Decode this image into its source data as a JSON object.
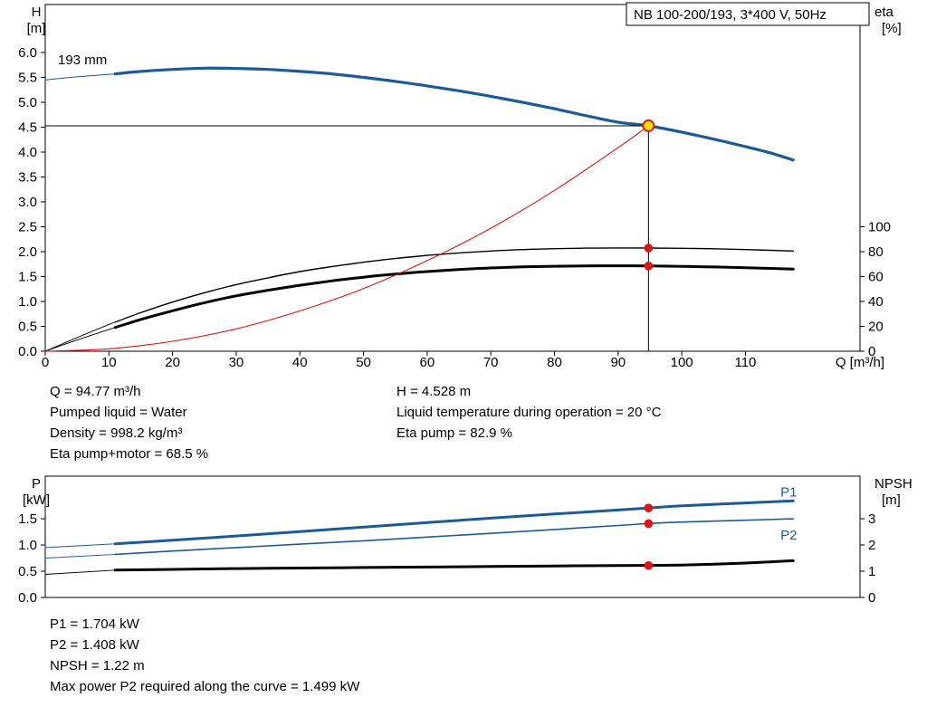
{
  "colors": {
    "pump_blue": "#1b5b97",
    "black": "#000000",
    "red": "#dc1414",
    "marker_yellow": "#ffdf00"
  },
  "top_info": {
    "left": [
      "Q = 94.77 m³/h",
      "Pumped liquid = Water",
      "Density = 998.2 kg/m³",
      "Eta pump+motor = 68.5 %"
    ],
    "right": [
      "H = 4.528 m",
      "Liquid temperature during operation = 20 °C",
      "Eta pump = 82.9 %"
    ]
  },
  "bottom_info": [
    "P1 = 1.704 kW",
    "P2 = 1.408 kW",
    "NPSH = 1.22 m",
    "Max power P2 required along the curve = 1.499 kW"
  ],
  "chart_data": [
    {
      "type": "line",
      "title": "NB 100-200/193, 3*400 V, 50Hz",
      "impeller_label": "193 mm",
      "x_axis": {
        "label": "Q [m³/h]",
        "min": 0,
        "max": 128,
        "decimals": 0,
        "ticks": [
          0,
          10,
          20,
          30,
          40,
          50,
          60,
          70,
          80,
          90,
          100,
          110
        ]
      },
      "y_axis_left": {
        "label": "H",
        "unit": "[m]",
        "min": 0,
        "max": 6.96,
        "decimals": 1,
        "ticks": [
          0,
          0.5,
          1,
          1.5,
          2,
          2.5,
          3,
          3.5,
          4,
          4.5,
          5,
          5.5,
          6
        ]
      },
      "y_axis_right": {
        "label": "eta",
        "unit": "[%]",
        "min": 0,
        "max": 100,
        "decimals": 0,
        "ticks": [
          0,
          20,
          40,
          60,
          80,
          100
        ]
      },
      "series": [
        {
          "name": "pump-curve",
          "axis": "left",
          "color": "pump_blue",
          "thin": 1,
          "thick": 3.2,
          "split_q": 11,
          "points": [
            [
              0,
              5.45
            ],
            [
              5,
              5.51
            ],
            [
              11,
              5.57
            ],
            [
              15,
              5.62
            ],
            [
              20,
              5.66
            ],
            [
              25,
              5.685
            ],
            [
              30,
              5.68
            ],
            [
              35,
              5.66
            ],
            [
              40,
              5.62
            ],
            [
              45,
              5.57
            ],
            [
              50,
              5.5
            ],
            [
              55,
              5.42
            ],
            [
              60,
              5.33
            ],
            [
              65,
              5.23
            ],
            [
              70,
              5.12
            ],
            [
              75,
              5.0
            ],
            [
              80,
              4.87
            ],
            [
              85,
              4.73
            ],
            [
              90,
              4.6
            ],
            [
              94.77,
              4.528
            ],
            [
              100,
              4.4
            ],
            [
              105,
              4.26
            ],
            [
              110,
              4.11
            ],
            [
              114,
              3.98
            ],
            [
              117.5,
              3.84
            ]
          ]
        },
        {
          "name": "eta-pump-curve",
          "axis": "right",
          "color": "black",
          "thin": 0.9,
          "thick": 1.4,
          "split_q": 11,
          "points": [
            [
              0,
              0
            ],
            [
              5,
              11
            ],
            [
              10,
              21.5
            ],
            [
              15,
              31
            ],
            [
              20,
              39.5
            ],
            [
              25,
              47
            ],
            [
              30,
              53.5
            ],
            [
              35,
              59
            ],
            [
              40,
              64
            ],
            [
              45,
              68
            ],
            [
              50,
              71.5
            ],
            [
              55,
              74.5
            ],
            [
              60,
              77
            ],
            [
              65,
              79
            ],
            [
              70,
              80.5
            ],
            [
              75,
              81.7
            ],
            [
              80,
              82.4
            ],
            [
              85,
              82.8
            ],
            [
              90,
              82.95
            ],
            [
              94.77,
              82.9
            ],
            [
              100,
              82.7
            ],
            [
              105,
              82.3
            ],
            [
              110,
              81.7
            ],
            [
              117.5,
              80.5
            ]
          ]
        },
        {
          "name": "eta-pump-motor-curve",
          "axis": "right",
          "color": "black",
          "thin": 0.9,
          "thick": 3,
          "split_q": 11,
          "points": [
            [
              0,
              0
            ],
            [
              5,
              9
            ],
            [
              10,
              17.5
            ],
            [
              15,
              25.5
            ],
            [
              20,
              32.5
            ],
            [
              25,
              39
            ],
            [
              30,
              44.5
            ],
            [
              35,
              49
            ],
            [
              40,
              53
            ],
            [
              45,
              56.5
            ],
            [
              50,
              59.5
            ],
            [
              55,
              62
            ],
            [
              60,
              64
            ],
            [
              65,
              65.7
            ],
            [
              70,
              66.9
            ],
            [
              75,
              67.8
            ],
            [
              80,
              68.3
            ],
            [
              85,
              68.6
            ],
            [
              90,
              68.65
            ],
            [
              94.77,
              68.5
            ],
            [
              100,
              68.2
            ],
            [
              105,
              67.7
            ],
            [
              110,
              67.1
            ],
            [
              117.5,
              66
            ]
          ]
        },
        {
          "name": "system-curve",
          "axis": "left",
          "color": "red",
          "thin": 1.1,
          "points": [
            [
              0,
              0
            ],
            [
              10,
              0.05
            ],
            [
              20,
              0.2
            ],
            [
              30,
              0.45
            ],
            [
              40,
              0.81
            ],
            [
              50,
              1.26
            ],
            [
              60,
              1.82
            ],
            [
              70,
              2.47
            ],
            [
              80,
              3.23
            ],
            [
              90,
              4.09
            ],
            [
              94.77,
              4.528
            ]
          ]
        }
      ],
      "operating_point": {
        "q": 94.77,
        "h": 4.528
      },
      "markers": [
        {
          "name": "duty-point-marker",
          "style": "op",
          "axis": "left",
          "q": 94.77,
          "v": 4.528
        },
        {
          "name": "eta-pump-marker",
          "style": "dot",
          "axis": "right",
          "q": 94.77,
          "v": 82.9
        },
        {
          "name": "eta-pump-motor-marker",
          "style": "dot",
          "axis": "right",
          "q": 94.77,
          "v": 68.5
        }
      ]
    },
    {
      "type": "line",
      "x_axis": {
        "label": "",
        "min": 0,
        "max": 128,
        "decimals": 0,
        "ticks": []
      },
      "y_axis_left": {
        "label": "P",
        "unit": "[kW]",
        "min": 0,
        "max": 2.31,
        "decimals": 1,
        "ticks": [
          0,
          0.5,
          1,
          1.5
        ]
      },
      "y_axis_right": {
        "label": "NPSH",
        "unit": "[m]",
        "min": 0,
        "max": 4.62,
        "decimals": 0,
        "ticks": [
          0,
          1,
          2,
          3
        ]
      },
      "series": [
        {
          "name": "p1-curve",
          "axis": "left",
          "color": "pump_blue",
          "thin": 1,
          "thick": 3,
          "split_q": 11,
          "label": "P1",
          "points": [
            [
              0,
              0.95
            ],
            [
              11,
              1.02
            ],
            [
              20,
              1.09
            ],
            [
              30,
              1.17
            ],
            [
              40,
              1.255
            ],
            [
              50,
              1.34
            ],
            [
              60,
              1.425
            ],
            [
              70,
              1.51
            ],
            [
              80,
              1.59
            ],
            [
              90,
              1.665
            ],
            [
              94.77,
              1.704
            ],
            [
              100,
              1.745
            ],
            [
              110,
              1.8
            ],
            [
              117.5,
              1.84
            ]
          ]
        },
        {
          "name": "p2-curve",
          "axis": "left",
          "color": "pump_blue",
          "thin": 0.9,
          "thick": 1.6,
          "split_q": 11,
          "label": "P2",
          "points": [
            [
              0,
              0.75
            ],
            [
              11,
              0.82
            ],
            [
              20,
              0.885
            ],
            [
              30,
              0.95
            ],
            [
              40,
              1.015
            ],
            [
              50,
              1.08
            ],
            [
              60,
              1.15
            ],
            [
              70,
              1.22
            ],
            [
              80,
              1.295
            ],
            [
              90,
              1.37
            ],
            [
              94.77,
              1.408
            ],
            [
              100,
              1.437
            ],
            [
              110,
              1.47
            ],
            [
              117.5,
              1.499
            ]
          ]
        },
        {
          "name": "npsh-curve",
          "axis": "right",
          "color": "black",
          "thin": 0.9,
          "thick": 3,
          "split_q": 11,
          "label": "NPSH",
          "points": [
            [
              0,
              0.88
            ],
            [
              11,
              1.04
            ],
            [
              20,
              1.07
            ],
            [
              30,
              1.1
            ],
            [
              40,
              1.12
            ],
            [
              50,
              1.14
            ],
            [
              60,
              1.16
            ],
            [
              70,
              1.18
            ],
            [
              80,
              1.2
            ],
            [
              90,
              1.215
            ],
            [
              94.77,
              1.22
            ],
            [
              100,
              1.235
            ],
            [
              105,
              1.27
            ],
            [
              110,
              1.31
            ],
            [
              117.5,
              1.4
            ]
          ]
        }
      ],
      "curve_labels": [
        {
          "text": "P1",
          "axis": "left",
          "q": 115.5,
          "v": 1.92,
          "color": "pump_blue"
        },
        {
          "text": "P2",
          "axis": "left",
          "q": 115.5,
          "v": 1.1,
          "color": "pump_blue"
        }
      ],
      "markers": [
        {
          "name": "p1-marker",
          "style": "dot",
          "axis": "left",
          "q": 94.77,
          "v": 1.704
        },
        {
          "name": "p2-marker",
          "style": "dot",
          "axis": "left",
          "q": 94.77,
          "v": 1.408
        },
        {
          "name": "npsh-marker",
          "style": "dot",
          "axis": "right",
          "q": 94.77,
          "v": 1.22
        }
      ]
    }
  ]
}
